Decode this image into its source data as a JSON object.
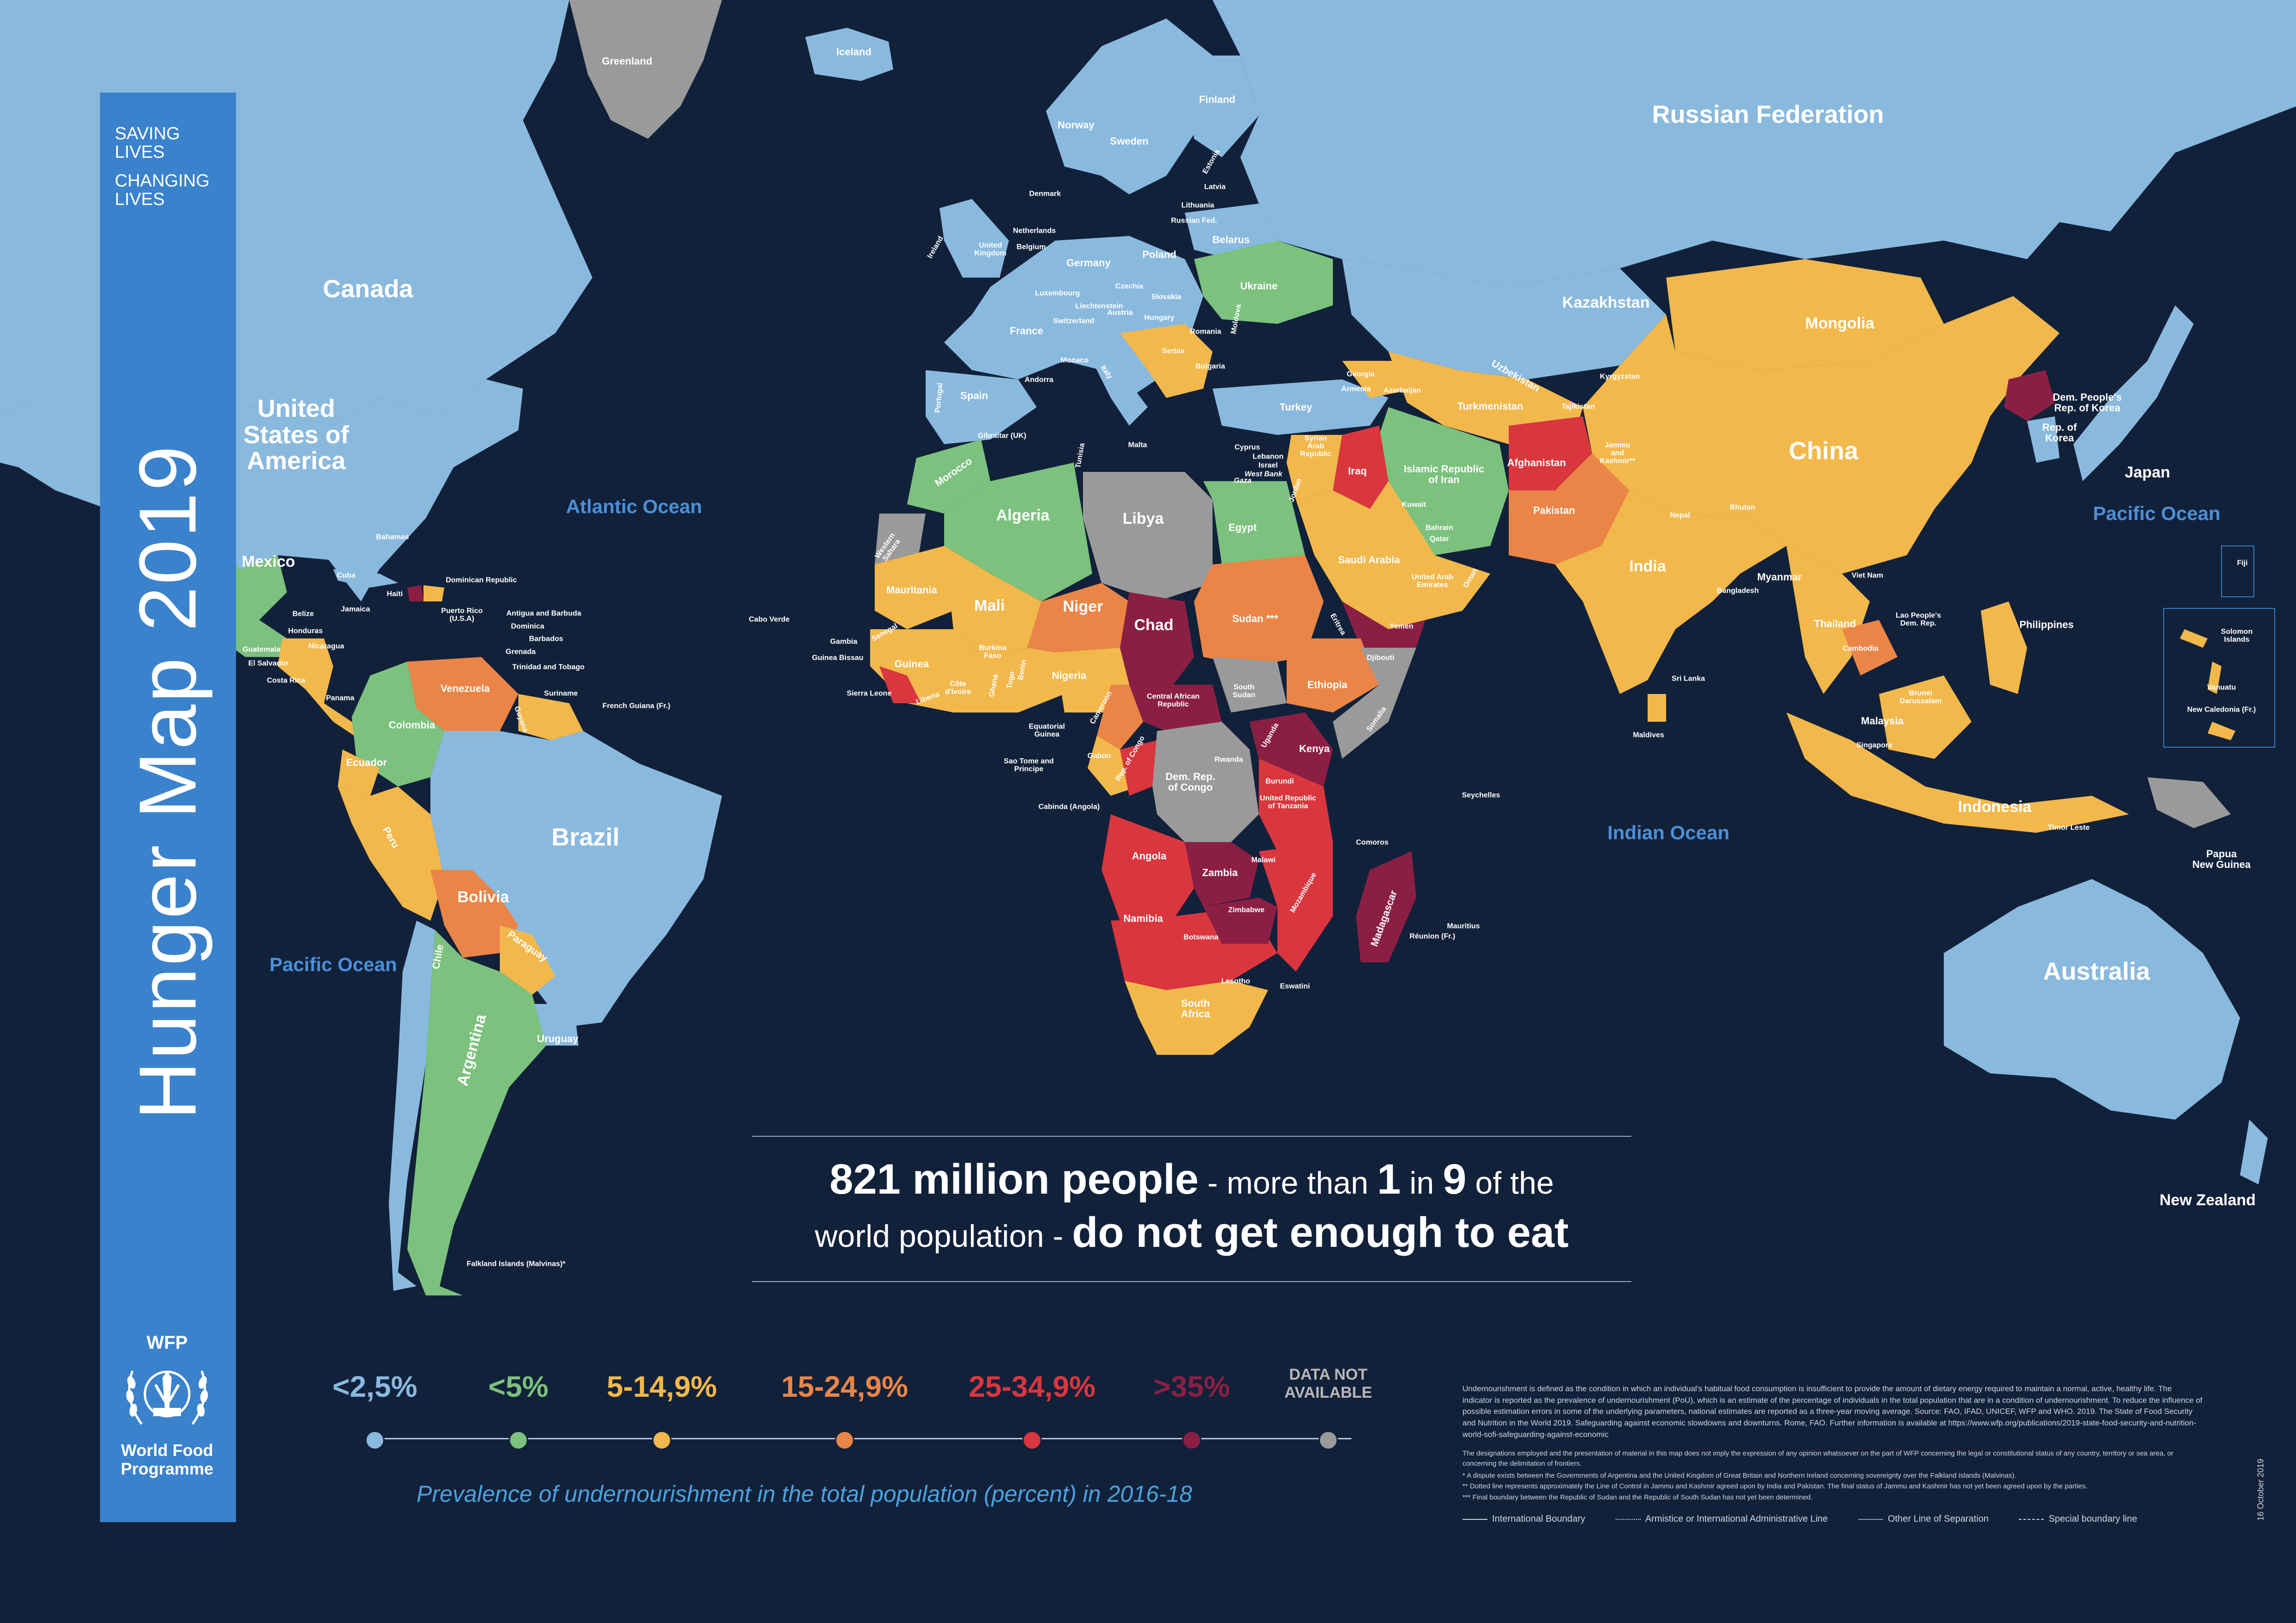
{
  "colors": {
    "ocean": "#12213a",
    "lt2_5": "#8ab9de",
    "lt5": "#7cc17e",
    "r5_15": "#f2b84b",
    "r15_25": "#ea8547",
    "r25_35": "#d9363e",
    "gt35": "#8b1f43",
    "na": "#9a9a9a",
    "sidebar": "#3b82cc",
    "caption": "#4aa3e0"
  },
  "sidebar": {
    "tagline_1": "SAVING\nLIVES",
    "tagline_1a": "SAVING",
    "tagline_1b": "LIVES",
    "tagline_2a": "CHANGING",
    "tagline_2b": "LIVES",
    "title": "Hunger Map 2019",
    "logo_abbr": "WFP",
    "logo_name_1": "World Food",
    "logo_name_2": "Programme",
    "logo_icon": "wfp-wheat-globe-icon"
  },
  "headline": {
    "num": "821 million people",
    "t1": " - more than ",
    "one": "1",
    "in": " in ",
    "nine": "9",
    "t2": " of the",
    "t3": "world population - ",
    "emph": "do not get enough to eat"
  },
  "legend": {
    "items": [
      {
        "label": "<2,5%",
        "color": "#8ab9de"
      },
      {
        "label": "<5%",
        "color": "#7cc17e"
      },
      {
        "label": "5-14,9%",
        "color": "#f2b84b"
      },
      {
        "label": "15-24,9%",
        "color": "#ea8547"
      },
      {
        "label": "25-34,9%",
        "color": "#d9363e"
      },
      {
        "label": ">35%",
        "color": "#8b1f43"
      }
    ],
    "na_1": "DATA NOT",
    "na_2": "AVAILABLE",
    "na_color": "#9a9a9a",
    "caption": "Prevalence of undernourishment in the total population (percent) in 2016-18"
  },
  "footnote": {
    "p1": "Undernourishment is defined as the condition in which an individual's habitual food consumption is insufficient to provide the amount of dietary energy required to maintain a normal, active, healthy life. The indicator is reported as the prevalence of undernourishment (PoU), which is an estimate of the percentage of individuals in the total population that are in a condition of undernourishment. To reduce the influence of possible estimation errors in some of the underlying parameters, national estimates are reported as a three-year moving average. Source: FAO, IFAD, UNICEF, WFP and WHO. 2019. The State of Food Security and Nutrition in the World 2019. Safeguarding against economic slowdowns and downturns. Rome, FAO. Further information is available at https://www.wfp.org/publications/2019-state-food-security-and-nutrition-world-sofi-safeguarding-against-economic",
    "p2": "The designations employed and the presentation of material in this map does not imply the expression of any opinion whatsoever on the part of WFP concerning the legal or constitutional status of any country, territory or sea area, or concerning the delimitation of frontiers.",
    "p3": "*   A dispute exists between the Governments of Argentina and the United Kingdom of Great Britain and Northern Ireland concerning sovereignty over the Falkland Islands (Malvinas).",
    "p4": "**  Dotted line represents approximately the Line of Control in Jammu and Kashmir agreed upon by India and Pakistan. The final status of Jammu and Kashmir has not yet been agreed upon by the parties.",
    "p5": "*** Final boundary between the Republic of Sudan and the Republic of South Sudan has not yet been determined."
  },
  "boundaries": {
    "b1": "International Boundary",
    "b2": "Armistice or International Administrative Line",
    "b3": "Other Line of Separation",
    "b4": "Special boundary line"
  },
  "date": "16 October 2019",
  "oceans": {
    "atlantic": "Atlantic Ocean",
    "pacific_w": "Pacific Ocean",
    "pacific_e": "Pacific Ocean",
    "indian": "Indian Ocean"
  },
  "countries": {
    "greenland": "Greenland",
    "iceland": "Iceland",
    "canada": "Canada",
    "usa": "United\nStates of\nAmerica",
    "usa_1": "United",
    "usa_2": "States of",
    "usa_3": "America",
    "mexico": "Mexico",
    "bahamas": "Bahamas",
    "cuba": "Cuba",
    "haiti": "Haiti",
    "dominican_rep": "Dominican Republic",
    "jamaica": "Jamaica",
    "belize": "Belize",
    "honduras": "Honduras",
    "guatemala": "Guatemala",
    "el_salvador": "El Salvador",
    "nicaragua": "Nicaragua",
    "costa_rica": "Costa Rica",
    "panama": "Panama",
    "puerto_rico": "Puerto Rico\n(U.S.A)",
    "antigua": "Antigua and Barbuda",
    "dominica": "Dominica",
    "barbados": "Barbados",
    "grenada": "Grenada",
    "trinidad": "Trinidad and Tobago",
    "venezuela": "Venezuela",
    "guyana": "Guyana",
    "suriname": "Suriname",
    "french_guiana": "French Guiana (Fr.)",
    "colombia": "Colombia",
    "ecuador": "Ecuador",
    "peru": "Peru",
    "brazil": "Brazil",
    "bolivia": "Bolivia",
    "paraguay": "Paraguay",
    "chile": "Chile",
    "argentina": "Argentina",
    "uruguay": "Uruguay",
    "falklands": "Falkland Islands (Malvinas)*",
    "norway": "Norway",
    "sweden": "Sweden",
    "finland": "Finland",
    "estonia": "Estonia",
    "latvia": "Latvia",
    "lithuania": "Lithuania",
    "russia_fed_small": "Russian Fed.",
    "denmark": "Denmark",
    "ireland": "Ireland",
    "uk": "United\nKingdom",
    "netherlands": "Netherlands",
    "belgium": "Belgium",
    "luxembourg": "Luxembourg",
    "germany": "Germany",
    "poland": "Poland",
    "belarus": "Belarus",
    "ukraine": "Ukraine",
    "moldova": "Moldova",
    "czechia": "Czechia",
    "slovakia": "Slovakia",
    "liechtenstein": "Liechtenstein",
    "austria": "Austria",
    "hungary": "Hungary",
    "switzerland": "Switzerland",
    "slovenia": "Slovenia",
    "croatia": "Croatia",
    "bosnia": "Bosnia and Herzegovina",
    "serbia": "Serbia",
    "romania": "Romania",
    "bulgaria": "Bulgaria",
    "montenegro": "Montenegro",
    "albania": "Albania",
    "north_macedonia": "North Macedonia",
    "greece": "Greece",
    "france": "France",
    "monaco": "Monaco",
    "andorra": "Andorra",
    "san_marino": "San Marino",
    "italy": "Italy",
    "malta": "Malta",
    "spain": "Spain",
    "portugal": "Portugal",
    "gibraltar": "Gibraltar (UK)",
    "russia": "Russian Federation",
    "kazakhstan": "Kazakhstan",
    "mongolia": "Mongolia",
    "china": "China",
    "japan": "Japan",
    "dprk": "Dem. People's\nRep. of Korea",
    "rok": "Rep. of\nKorea",
    "georgia": "Georgia",
    "armenia": "Armenia",
    "azerbaijan": "Azerbaijan",
    "turkey": "Turkey",
    "uzbekistan": "Uzbekistan",
    "turkmenistan": "Turkmenistan",
    "kyrgyzstan": "Kyrgyzstan",
    "tajikistan": "Tajikistan",
    "cyprus": "Cyprus",
    "lebanon": "Lebanon",
    "israel": "Israel",
    "west_bank": "West Bank",
    "gaza": "Gaza",
    "syria": "Syrian\nArab\nRepublic",
    "jordan": "Jordan",
    "iraq": "Iraq",
    "iran": "Islamic Republic\nof Iran",
    "afghanistan": "Afghanistan",
    "pakistan": "Pakistan",
    "jammu_kashmir": "Jammu\nand\nKashmir**",
    "india": "India",
    "nepal": "Nepal",
    "bhutan": "Bhutan",
    "bangladesh": "Bangladesh",
    "sri_lanka": "Sri Lanka",
    "maldives": "Maldives",
    "kuwait": "Kuwait",
    "bahrain": "Bahrain",
    "qatar": "Qatar",
    "uae": "United Arab\nEmirates",
    "oman": "Oman",
    "saudi_arabia": "Saudi Arabia",
    "yemen": "Yemen",
    "myanmar": "Myanmar",
    "lao": "Lao People's\nDem. Rep.",
    "thailand": "Thailand",
    "viet_nam": "Viet Nam",
    "cambodia": "Cambodia",
    "philippines": "Philippines",
    "brunei": "Brunei\nDarussalam",
    "malaysia": "Malaysia",
    "singapore": "Singapore",
    "indonesia": "Indonesia",
    "timor_leste": "Timor Leste",
    "png": "Papua\nNew Guinea",
    "australia": "Australia",
    "new_zealand": "New Zealand",
    "fiji": "Fiji",
    "solomon": "Solomon\nIslands",
    "vanuatu": "Vanuatu",
    "new_caledonia": "New Caledonia (Fr.)",
    "morocco": "Morocco",
    "western_sahara": "Western\nSahara",
    "algeria": "Algeria",
    "tunisia": "Tunisia",
    "libya": "Libya",
    "egypt": "Egypt",
    "mauritania": "Mauritania",
    "mali": "Mali",
    "niger": "Niger",
    "chad": "Chad",
    "sudan": "Sudan ***",
    "south_sudan": "South\nSudan",
    "eritrea": "Eritrea",
    "djibouti": "Djibouti",
    "ethiopia": "Ethiopia",
    "somalia": "Somalia",
    "cabo_verde": "Cabo Verde",
    "senegal": "Senegal",
    "gambia": "Gambia",
    "guinea_bissau": "Guinea Bissau",
    "guinea": "Guinea",
    "sierra_leone": "Sierra Leone",
    "liberia": "Liberia",
    "cote_divoire": "Côte\nd'Ivoire",
    "burkina": "Burkina\nFaso",
    "ghana": "Ghana",
    "togo": "Togo",
    "benin": "Benin",
    "nigeria": "Nigeria",
    "cameroon": "Cameroon",
    "car": "Central African\nRepublic",
    "eq_guinea": "Equatorial\nGuinea",
    "sao_tome": "Sao Tome and\nPrincipe",
    "gabon": "Gabon",
    "congo": "Rep. of Congo",
    "drc": "Dem. Rep.\nof Congo",
    "cabinda": "Cabinda (Angola)",
    "uganda": "Uganda",
    "kenya": "Kenya",
    "rwanda": "Rwanda",
    "burundi": "Burundi",
    "tanzania": "United Republic\nof Tanzania",
    "seychelles": "Seychelles",
    "angola": "Angola",
    "zambia": "Zambia",
    "malawi": "Malawi",
    "mozambique": "Mozambique",
    "zimbabwe": "Zimbabwe",
    "namibia": "Namibia",
    "botswana": "Botswana",
    "south_africa": "South\nAfrica",
    "lesotho": "Lesotho",
    "eswatini": "Eswatini",
    "madagascar": "Madagascar",
    "comoros": "Comoros",
    "mauritius": "Mauritius",
    "reunion": "Réunion (Fr.)"
  }
}
